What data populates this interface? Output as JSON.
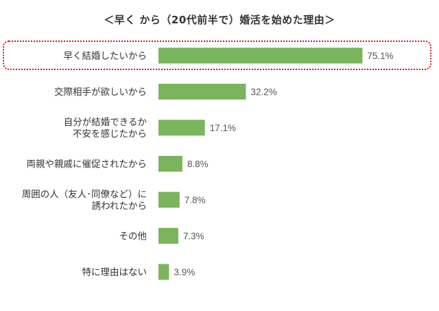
{
  "colors": {
    "bar": "#7ab55c",
    "highlight": "#d0121b",
    "text": "#333333"
  },
  "chart_data": {
    "type": "bar",
    "orientation": "horizontal",
    "title": "＜早く から（20代前半で）婚活を始めた理由＞",
    "categories": [
      [
        "早く結婚したいから"
      ],
      [
        "交際相手が欲しいから"
      ],
      [
        "自分が結婚できるか",
        "不安を感じたから"
      ],
      [
        "両親や親戚に催促されたから"
      ],
      [
        "周囲の人（友人･同僚など）に",
        "誘われたから"
      ],
      [
        "その他"
      ],
      [
        "特に理由はない"
      ]
    ],
    "values": [
      75.1,
      32.2,
      17.1,
      8.8,
      7.8,
      7.3,
      3.9
    ],
    "value_labels": [
      "75.1%",
      "32.2%",
      "17.1%",
      "8.8%",
      "7.8%",
      "7.3%",
      "3.9%"
    ],
    "highlighted_category_index": 0
  }
}
